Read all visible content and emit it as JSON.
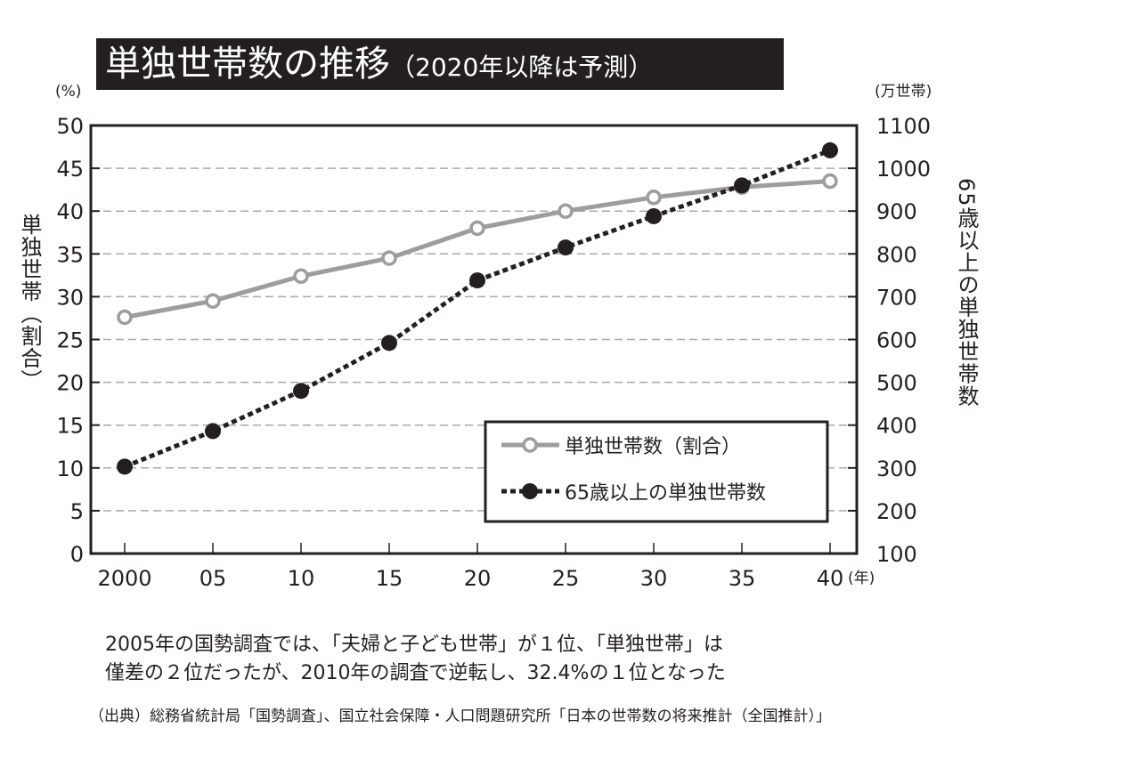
{
  "chart_data": {
    "type": "line",
    "title": "単独世帯数の推移",
    "subtitle": "（2020年以降は予測）",
    "x": [
      "2000",
      "05",
      "10",
      "15",
      "20",
      "25",
      "30",
      "35",
      "40"
    ],
    "x_unit": "(年)",
    "y_left": {
      "label": "単独世帯（割合）",
      "unit": "(%)",
      "range": [
        0,
        50
      ],
      "ticks": [
        0,
        5,
        10,
        15,
        20,
        25,
        30,
        35,
        40,
        45,
        50
      ]
    },
    "y_right": {
      "label": "65歳以上の単独世帯数",
      "unit": "(万世帯)",
      "range": [
        100,
        1100
      ],
      "ticks": [
        100,
        200,
        300,
        400,
        500,
        600,
        700,
        800,
        900,
        1000,
        1100
      ]
    },
    "grid": true,
    "legend_position": "bottom-right",
    "series": [
      {
        "name": "単独世帯数（割合）",
        "axis": "left",
        "color": "#9d9d9d",
        "style": "solid-open-circle",
        "values": [
          27.6,
          29.5,
          32.4,
          34.5,
          38.0,
          40.0,
          41.6,
          42.8,
          43.5
        ]
      },
      {
        "name": "65歳以上の単独世帯数",
        "axis": "right",
        "color": "#231f20",
        "style": "dotted-filled-circle",
        "values": [
          303,
          386,
          480,
          592,
          738,
          815,
          888,
          960,
          1042
        ]
      }
    ]
  },
  "notes": [
    "2005年の国勢調査では、「夫婦と子ども世帯」が１位、「単独世帯」は",
    "僅差の２位だったが、2010年の調査で逆転し、32.4%の１位となった"
  ],
  "source": "（出典）総務省統計局「国勢調査」、国立社会保障・人口問題研究所「日本の世帯数の将来推計（全国推計）」"
}
